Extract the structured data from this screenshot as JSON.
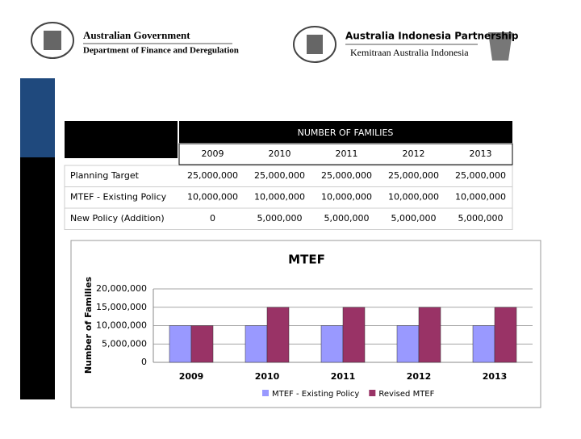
{
  "header": {
    "left": {
      "line1": "Australian Government",
      "line2": "Department of Finance and Deregulation"
    },
    "right": {
      "line1": "Australia Indonesia Partnership",
      "line2": "Kemitraan Australia Indonesia"
    }
  },
  "table": {
    "group_header": "NUMBER OF FAMILIES",
    "columns": [
      "2009",
      "2010",
      "2011",
      "2012",
      "2013"
    ],
    "rows": [
      [
        "Planning Target",
        "25,000,000",
        "25,000,000",
        "25,000,000",
        "25,000,000",
        "25,000,000"
      ],
      [
        "MTEF - Existing Policy",
        "10,000,000",
        "10,000,000",
        "10,000,000",
        "10,000,000",
        "10,000,000"
      ],
      [
        "New Policy (Addition)",
        "0",
        "5,000,000",
        "5,000,000",
        "5,000,000",
        "5,000,000"
      ]
    ]
  },
  "chart_data": {
    "type": "bar",
    "title": "MTEF",
    "y_label": "Number of Families",
    "categories": [
      "2009",
      "2010",
      "2011",
      "2012",
      "2013"
    ],
    "series": [
      {
        "name": "MTEF - Existing Policy",
        "color": "#9999ff",
        "values": [
          10000000,
          10000000,
          10000000,
          10000000,
          10000000
        ]
      },
      {
        "name": "Revised MTEF",
        "color": "#993366",
        "values": [
          10000000,
          15000000,
          15000000,
          15000000,
          15000000
        ]
      }
    ],
    "ylim": [
      0,
      20000000
    ],
    "yticks": [
      0,
      {
        "value": 5000000,
        "label": "5,000,000"
      },
      {
        "value": 10000000,
        "label": "10,000,000"
      },
      {
        "value": 15000000,
        "label": "15,000,000"
      },
      {
        "value": 20000000,
        "label": "20,000,000"
      }
    ],
    "grid": true,
    "legend": "bottom"
  }
}
